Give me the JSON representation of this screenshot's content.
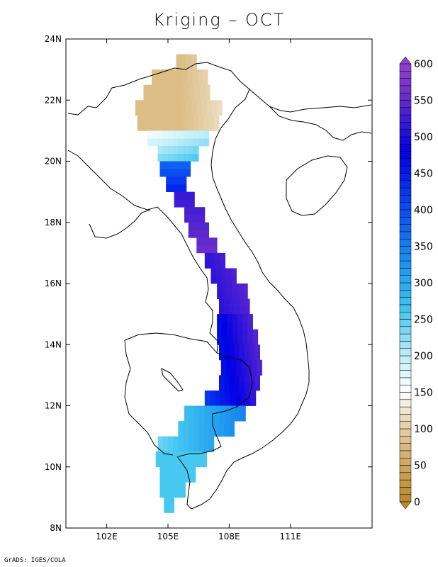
{
  "title": "Kriging – OCT",
  "footer": "GrADS: IGES/COLA",
  "map": {
    "lon_range": [
      100,
      115
    ],
    "lat_range": [
      8,
      24
    ],
    "lon_ticks": [
      "102E",
      "105E",
      "108E",
      "111E"
    ],
    "lat_ticks": [
      "24N",
      "22N",
      "20N",
      "18N",
      "16N",
      "14N",
      "12N",
      "10N",
      "8N"
    ]
  },
  "colorbar": {
    "min": 0,
    "max": 600,
    "step": 10,
    "labels": [
      "600",
      "550",
      "500",
      "450",
      "400",
      "350",
      "300",
      "250",
      "200",
      "150",
      "100",
      "50",
      "0"
    ],
    "colors_low_to_high": [
      "#b8862b",
      "#d4ad6a",
      "#e8d5b0",
      "#ffffff",
      "#bfeef8",
      "#46c8f0",
      "#1e9af0",
      "#0a4ef0",
      "#0000e6",
      "#7030c8",
      "#9040d0"
    ]
  }
}
